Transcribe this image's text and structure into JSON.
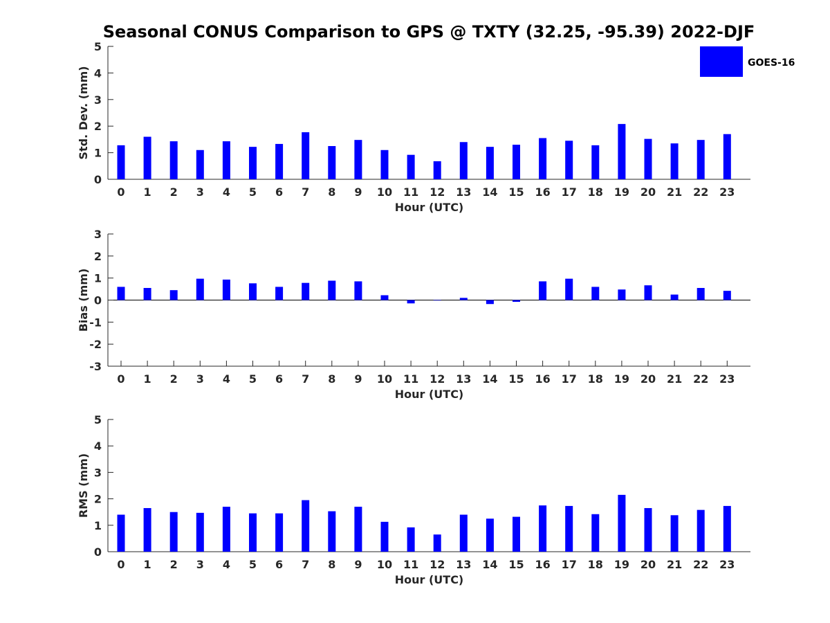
{
  "title": "Seasonal CONUS Comparison to GPS @ TXTY (32.25, -95.39) 2022-DJF",
  "legend": {
    "label": "GOES-16",
    "color": "#0000ff",
    "placement": "top-right"
  },
  "chart_data": [
    {
      "type": "bar",
      "name": "std-dev",
      "categories": [
        "0",
        "1",
        "2",
        "3",
        "4",
        "5",
        "6",
        "7",
        "8",
        "9",
        "10",
        "11",
        "12",
        "13",
        "14",
        "15",
        "16",
        "17",
        "18",
        "19",
        "20",
        "21",
        "22",
        "23"
      ],
      "series": [
        {
          "name": "GOES-16",
          "values": [
            1.28,
            1.6,
            1.43,
            1.1,
            1.43,
            1.22,
            1.33,
            1.77,
            1.25,
            1.48,
            1.1,
            0.92,
            0.68,
            1.4,
            1.22,
            1.3,
            1.55,
            1.45,
            1.28,
            2.08,
            1.52,
            1.35,
            1.48,
            1.7
          ]
        }
      ],
      "xlabel": "Hour (UTC)",
      "ylabel": "Std. Dev. (mm)",
      "ylim": [
        0,
        5
      ],
      "yticks": [
        "0",
        "1",
        "2",
        "3",
        "4",
        "5"
      ],
      "grid": false
    },
    {
      "type": "bar",
      "name": "bias",
      "categories": [
        "0",
        "1",
        "2",
        "3",
        "4",
        "5",
        "6",
        "7",
        "8",
        "9",
        "10",
        "11",
        "12",
        "13",
        "14",
        "15",
        "16",
        "17",
        "18",
        "19",
        "20",
        "21",
        "22",
        "23"
      ],
      "series": [
        {
          "name": "GOES-16",
          "values": [
            0.6,
            0.55,
            0.45,
            0.97,
            0.93,
            0.76,
            0.6,
            0.78,
            0.88,
            0.85,
            0.22,
            -0.15,
            -0.02,
            0.1,
            -0.18,
            -0.08,
            0.85,
            0.97,
            0.6,
            0.48,
            0.67,
            0.25,
            0.55,
            0.42
          ]
        }
      ],
      "xlabel": "Hour (UTC)",
      "ylabel": "Bias (mm)",
      "ylim": [
        -3,
        3
      ],
      "yticks": [
        "-3",
        "-2",
        "-1",
        "0",
        "1",
        "2",
        "3"
      ],
      "grid": false
    },
    {
      "type": "bar",
      "name": "rms",
      "categories": [
        "0",
        "1",
        "2",
        "3",
        "4",
        "5",
        "6",
        "7",
        "8",
        "9",
        "10",
        "11",
        "12",
        "13",
        "14",
        "15",
        "16",
        "17",
        "18",
        "19",
        "20",
        "21",
        "22",
        "23"
      ],
      "series": [
        {
          "name": "GOES-16",
          "values": [
            1.4,
            1.65,
            1.5,
            1.47,
            1.7,
            1.45,
            1.45,
            1.95,
            1.53,
            1.7,
            1.13,
            0.92,
            0.65,
            1.4,
            1.25,
            1.32,
            1.75,
            1.73,
            1.42,
            2.15,
            1.65,
            1.38,
            1.58,
            1.73
          ]
        }
      ],
      "xlabel": "Hour (UTC)",
      "ylabel": "RMS (mm)",
      "ylim": [
        0,
        5
      ],
      "yticks": [
        "0",
        "1",
        "2",
        "3",
        "4",
        "5"
      ],
      "grid": false
    }
  ]
}
